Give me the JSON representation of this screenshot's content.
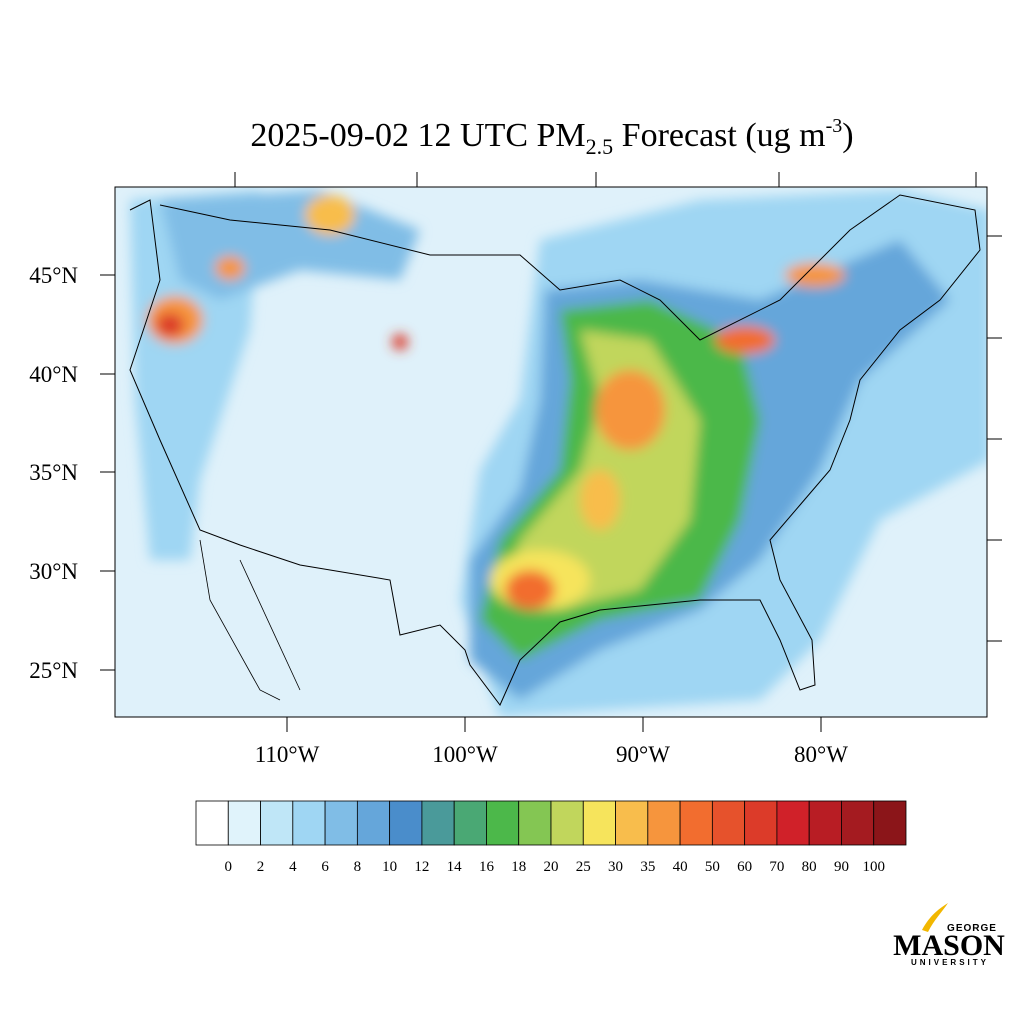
{
  "map": {
    "title": {
      "main": "2025-09-02 12 UTC PM",
      "sub": "2.5",
      "rest": " Forecast (ug m",
      "sup": "-3",
      "end": ")"
    },
    "lat_labels": [
      "45°N",
      "40°N",
      "35°N",
      "30°N",
      "25°N"
    ],
    "lon_labels": [
      "110°W",
      "100°W",
      "90°W",
      "80°W"
    ],
    "colorbar": {
      "levels": [
        0,
        2,
        4,
        6,
        8,
        10,
        12,
        14,
        16,
        18,
        20,
        25,
        30,
        35,
        40,
        50,
        60,
        70,
        80,
        90,
        100
      ],
      "colors": [
        "#ffffff",
        "#e0f3fb",
        "#bfe6f7",
        "#9fd6f3",
        "#80bde6",
        "#65a6da",
        "#4a8dcb",
        "#4a9a9a",
        "#4aa874",
        "#4cb84a",
        "#84c653",
        "#c1d65c",
        "#f6e45c",
        "#f8bd4c",
        "#f6953d",
        "#f26d2f",
        "#e6522c",
        "#dc3b29",
        "#d02129",
        "#b81d24",
        "#a41b20",
        "#8b1519"
      ]
    },
    "logo": {
      "top": "GEORGE",
      "main": "MASON",
      "bottom": "UNIVERSITY"
    }
  }
}
